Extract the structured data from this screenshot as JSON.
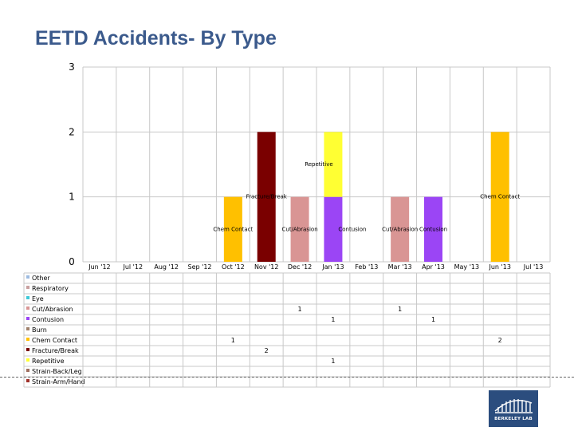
{
  "slide": {
    "title": "EETD Accidents- By Type"
  },
  "logo": {
    "text": "BERKELEY LAB"
  },
  "chart_data": {
    "type": "bar",
    "stacked": true,
    "categories": [
      "Jun '12",
      "Jul '12",
      "Aug '12",
      "Sep '12",
      "Oct '12",
      "Nov '12",
      "Dec '12",
      "Jan '13",
      "Feb '13",
      "Mar '13",
      "Apr '13",
      "May '13",
      "Jun '13",
      "Jul '13"
    ],
    "ylim": [
      0,
      3
    ],
    "yticks": [
      "0",
      "1",
      "2",
      "3"
    ],
    "grid": true,
    "legend_position": "left, in data table",
    "series": [
      {
        "name": "Other",
        "color": "#9dbbe0",
        "values": [
          0,
          0,
          0,
          0,
          0,
          0,
          0,
          0,
          0,
          0,
          0,
          0,
          0,
          0
        ]
      },
      {
        "name": "Respiratory",
        "color": "#c9a0a0",
        "values": [
          0,
          0,
          0,
          0,
          0,
          0,
          0,
          0,
          0,
          0,
          0,
          0,
          0,
          0
        ]
      },
      {
        "name": "Eye",
        "color": "#3ec9d8",
        "values": [
          0,
          0,
          0,
          0,
          0,
          0,
          0,
          0,
          0,
          0,
          0,
          0,
          0,
          0
        ]
      },
      {
        "name": "Cut/Abrasion",
        "color": "#d99594",
        "values": [
          0,
          0,
          0,
          0,
          0,
          0,
          1,
          0,
          0,
          1,
          0,
          0,
          0,
          0
        ]
      },
      {
        "name": "Contusion",
        "color": "#9b45f5",
        "values": [
          0,
          0,
          0,
          0,
          0,
          0,
          0,
          1,
          0,
          0,
          1,
          0,
          0,
          0
        ]
      },
      {
        "name": "Burn",
        "color": "#a0826d",
        "values": [
          0,
          0,
          0,
          0,
          0,
          0,
          0,
          0,
          0,
          0,
          0,
          0,
          0,
          0
        ]
      },
      {
        "name": "Chem Contact",
        "color": "#ffc000",
        "values": [
          0,
          0,
          0,
          0,
          1,
          0,
          0,
          0,
          0,
          0,
          0,
          0,
          2,
          0
        ]
      },
      {
        "name": "Fracture/Break",
        "color": "#7a0000",
        "values": [
          0,
          0,
          0,
          0,
          0,
          2,
          0,
          0,
          0,
          0,
          0,
          0,
          0,
          0
        ]
      },
      {
        "name": "Repetitive",
        "color": "#ffff33",
        "values": [
          0,
          0,
          0,
          0,
          0,
          0,
          0,
          1,
          0,
          0,
          0,
          0,
          0,
          0
        ]
      },
      {
        "name": "Strain-Back/Leg",
        "color": "#a07060",
        "values": [
          0,
          0,
          0,
          0,
          0,
          0,
          0,
          0,
          0,
          0,
          0,
          0,
          0,
          0
        ]
      },
      {
        "name": "Strain-Arm/Hand",
        "color": "#a0302a",
        "values": [
          0,
          0,
          0,
          0,
          0,
          0,
          0,
          0,
          0,
          0,
          0,
          0,
          0,
          0
        ]
      }
    ],
    "segment_labels": [
      {
        "text": "Chem Contact",
        "category": 4,
        "series": "Chem Contact"
      },
      {
        "text": "Fracture/Break",
        "category": 5,
        "series": "Fracture/Break"
      },
      {
        "text": "Cut/Abrasion",
        "category": 6,
        "series": "Cut/Abrasion"
      },
      {
        "text": "Repetitive",
        "category": 7,
        "series": "Repetitive"
      },
      {
        "text": "Contusion",
        "category": 7,
        "series": "Contusion"
      },
      {
        "text": "Cut/Abrasion",
        "category": 9,
        "series": "Cut/Abrasion"
      },
      {
        "text": "Contusion",
        "category": 10,
        "series": "Contusion"
      },
      {
        "text": "Chem Contact",
        "category": 12,
        "series": "Chem Contact"
      }
    ]
  }
}
